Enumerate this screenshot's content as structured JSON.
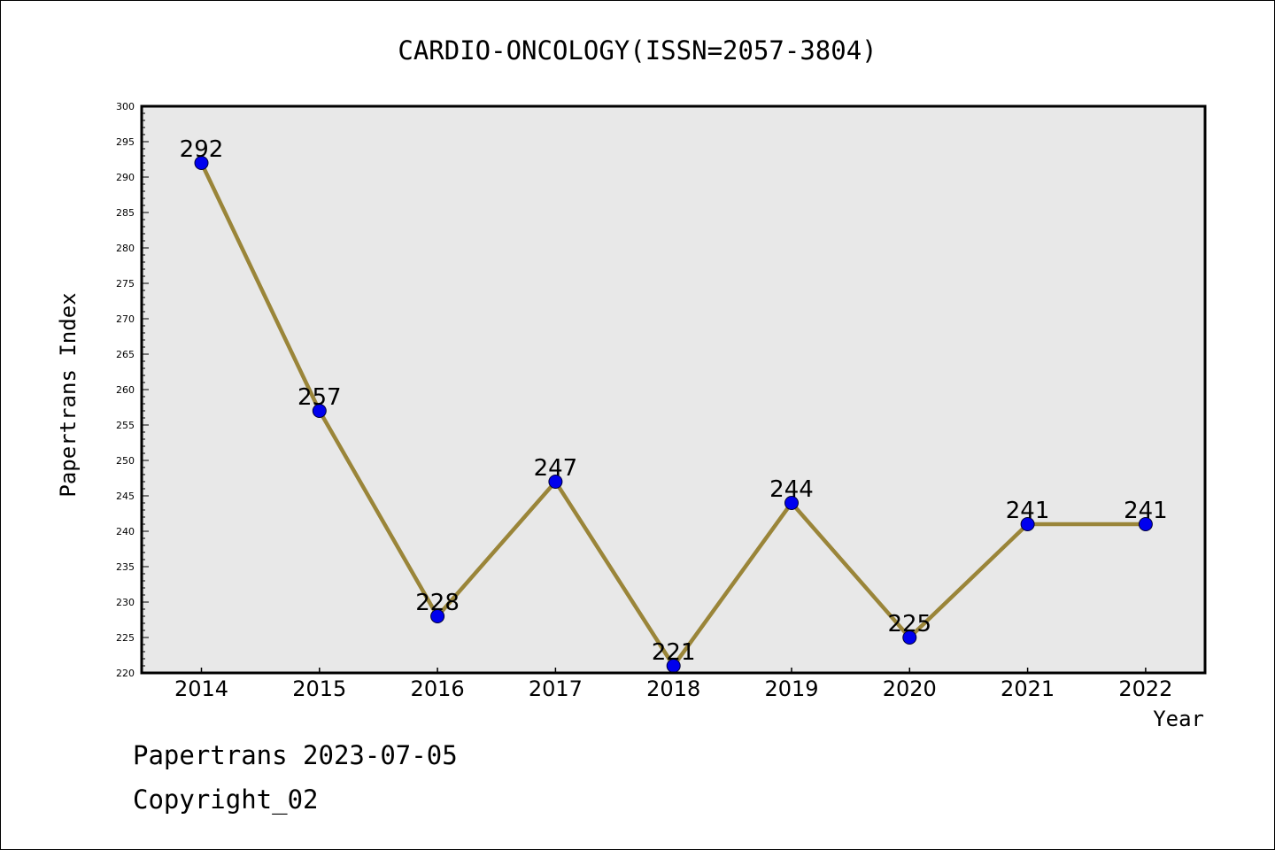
{
  "chart_data": {
    "type": "line",
    "title": "CARDIO-ONCOLOGY(ISSN=2057-3804)",
    "xlabel": "Year",
    "ylabel": "Papertrans Index",
    "x": [
      "2014",
      "2015",
      "2016",
      "2017",
      "2018",
      "2019",
      "2020",
      "2021",
      "2022"
    ],
    "series": [
      {
        "values": [
          292,
          257,
          228,
          247,
          221,
          244,
          225,
          241,
          241
        ]
      }
    ],
    "ylim": [
      220,
      300
    ],
    "yticks": [
      220,
      225,
      230,
      235,
      240,
      245,
      250,
      255,
      260,
      265,
      270,
      275,
      280,
      285,
      290,
      295,
      300
    ],
    "grid": false,
    "colors": {
      "line": "#9a8539",
      "marker": "#0000ee",
      "plot_bg": "#e8e8e8"
    }
  },
  "footer": {
    "line1": "Papertrans 2023-07-05",
    "line2": "Copyright_02"
  }
}
